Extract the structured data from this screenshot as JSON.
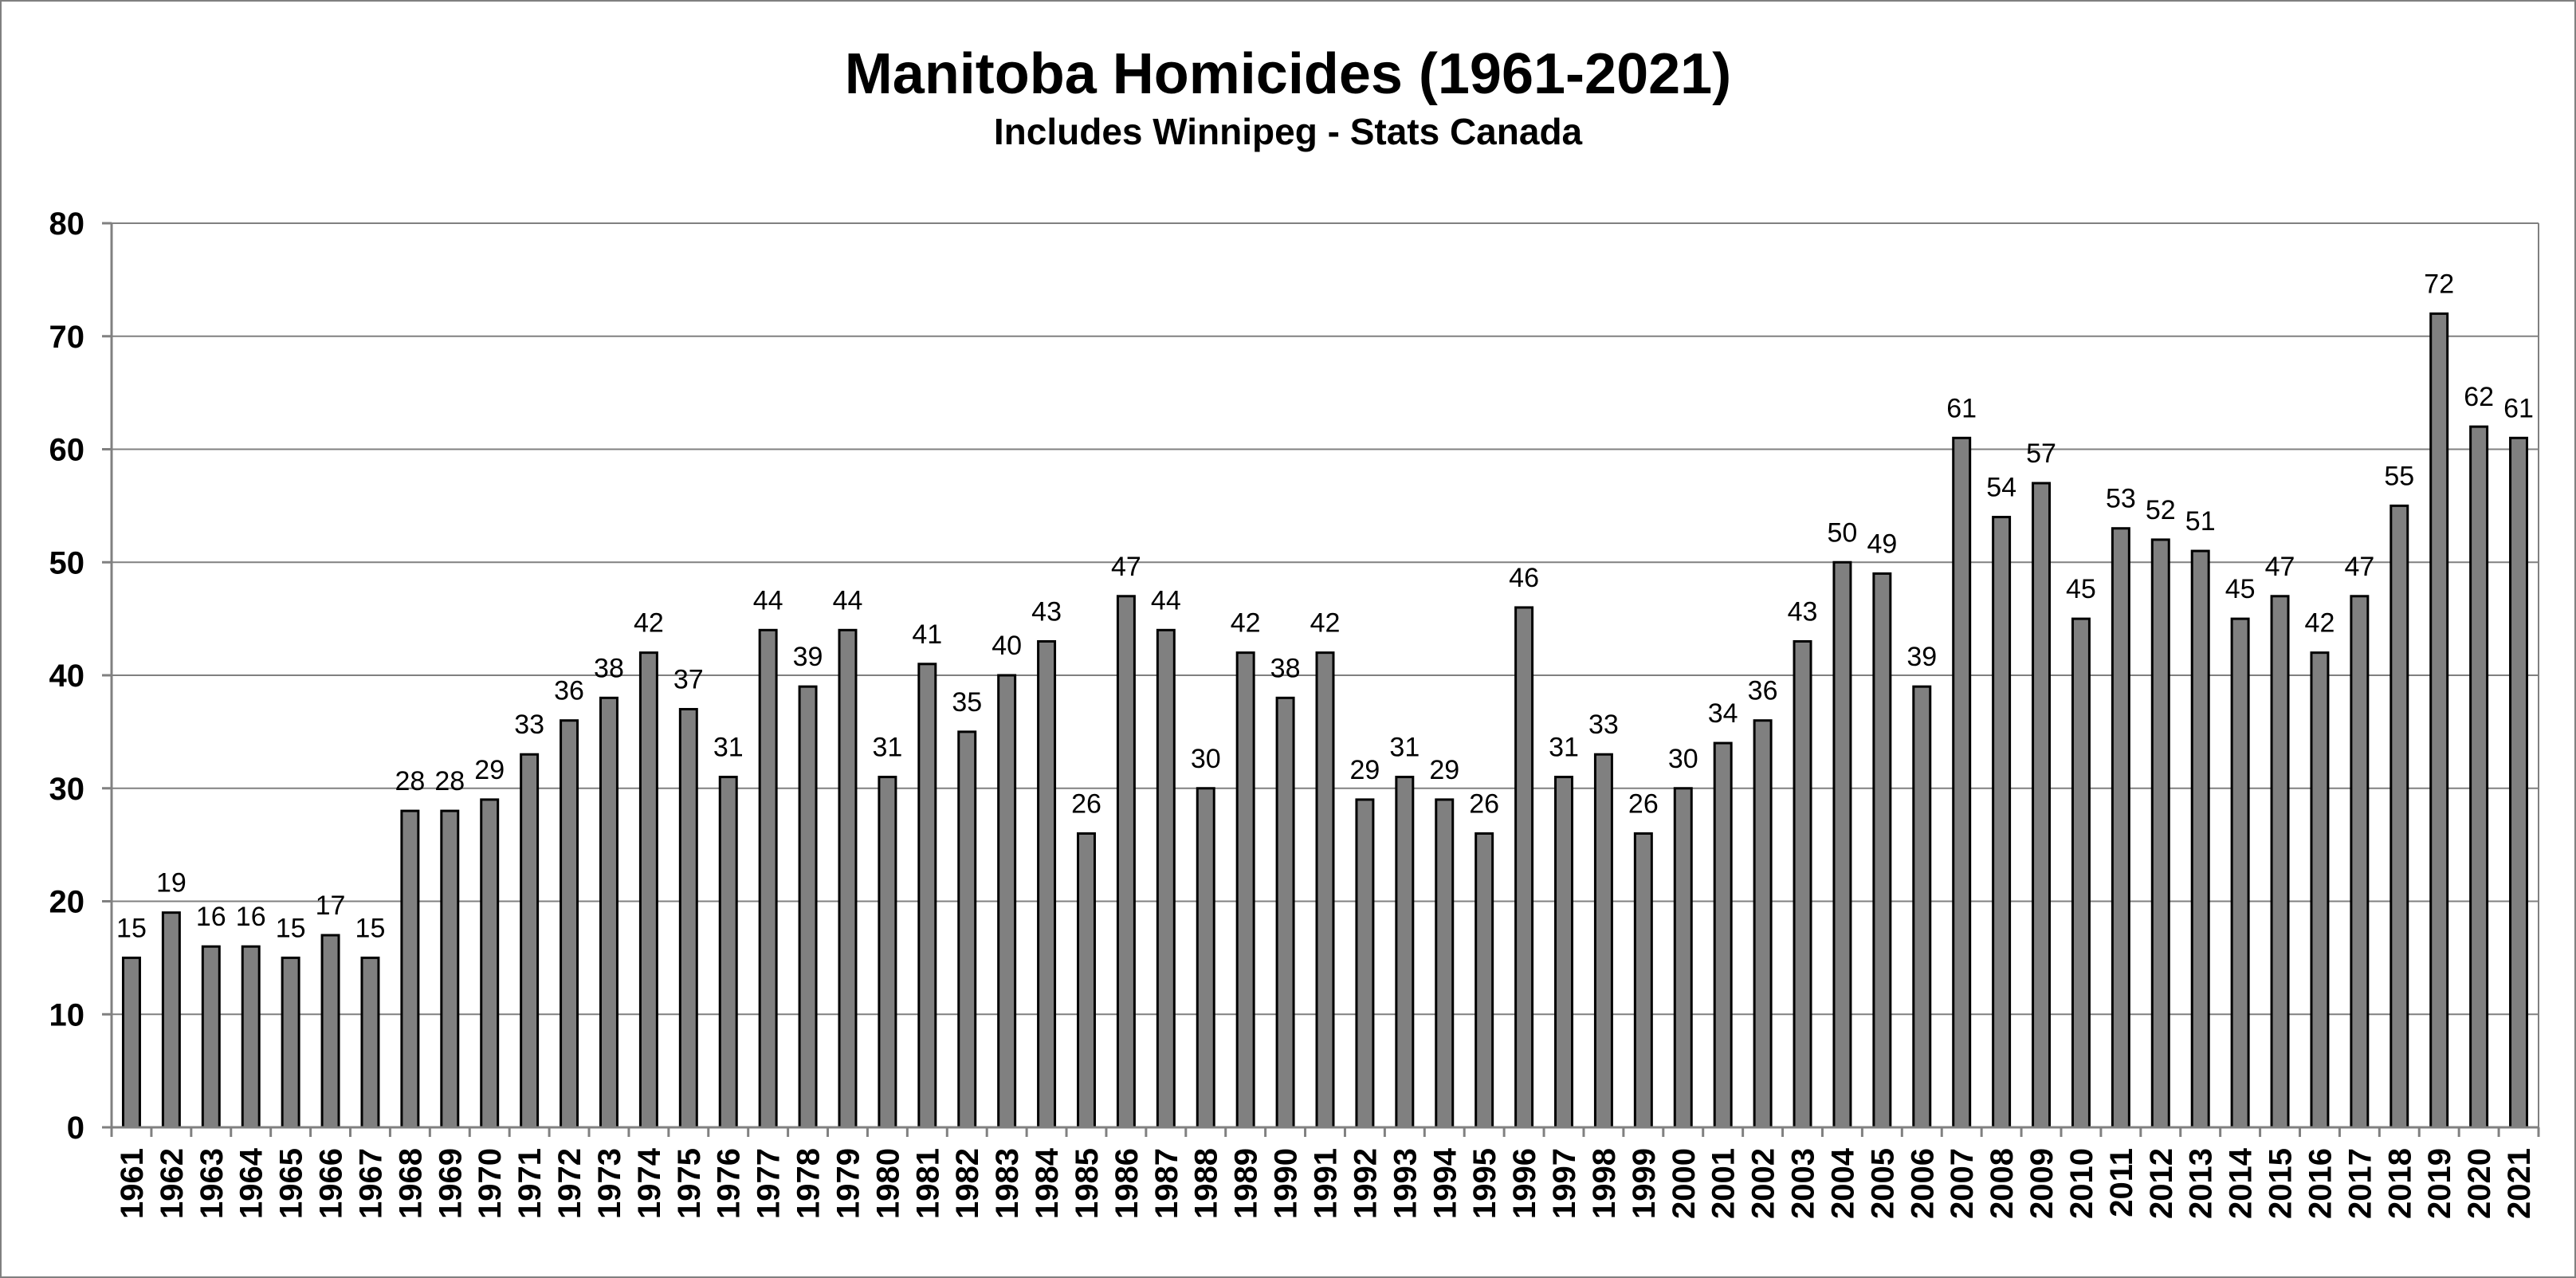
{
  "chart_data": {
    "type": "bar",
    "title": "Manitoba Homicides (1961-2021)",
    "subtitle": "Includes Winnipeg - Stats Canada",
    "xlabel": "",
    "ylabel": "",
    "ylim": [
      0,
      80
    ],
    "yticks": [
      "0",
      "10",
      "20",
      "30",
      "40",
      "50",
      "60",
      "70",
      "80"
    ],
    "grid": true,
    "legend": "none",
    "bar_color": "#808080",
    "bar_edge_color": "#000000",
    "categories": [
      "1961",
      "1962",
      "1963",
      "1964",
      "1965",
      "1966",
      "1967",
      "1968",
      "1969",
      "1970",
      "1971",
      "1972",
      "1973",
      "1974",
      "1975",
      "1976",
      "1977",
      "1978",
      "1979",
      "1980",
      "1981",
      "1982",
      "1983",
      "1984",
      "1985",
      "1986",
      "1987",
      "1988",
      "1989",
      "1990",
      "1991",
      "1992",
      "1993",
      "1994",
      "1995",
      "1996",
      "1997",
      "1998",
      "1999",
      "2000",
      "2001",
      "2002",
      "2003",
      "2004",
      "2005",
      "2006",
      "2007",
      "2008",
      "2009",
      "2010",
      "2011",
      "2012",
      "2013",
      "2014",
      "2015",
      "2016",
      "2017",
      "2018",
      "2019",
      "2020",
      "2021"
    ],
    "values": [
      15,
      19,
      16,
      16,
      15,
      17,
      15,
      28,
      28,
      29,
      33,
      36,
      38,
      42,
      37,
      31,
      44,
      39,
      44,
      31,
      41,
      35,
      40,
      43,
      26,
      47,
      44,
      30,
      42,
      38,
      42,
      29,
      31,
      29,
      26,
      46,
      31,
      33,
      26,
      30,
      34,
      36,
      43,
      50,
      49,
      39,
      61,
      54,
      57,
      45,
      53,
      52,
      51,
      45,
      47,
      42,
      47,
      55,
      72,
      62,
      61
    ]
  }
}
